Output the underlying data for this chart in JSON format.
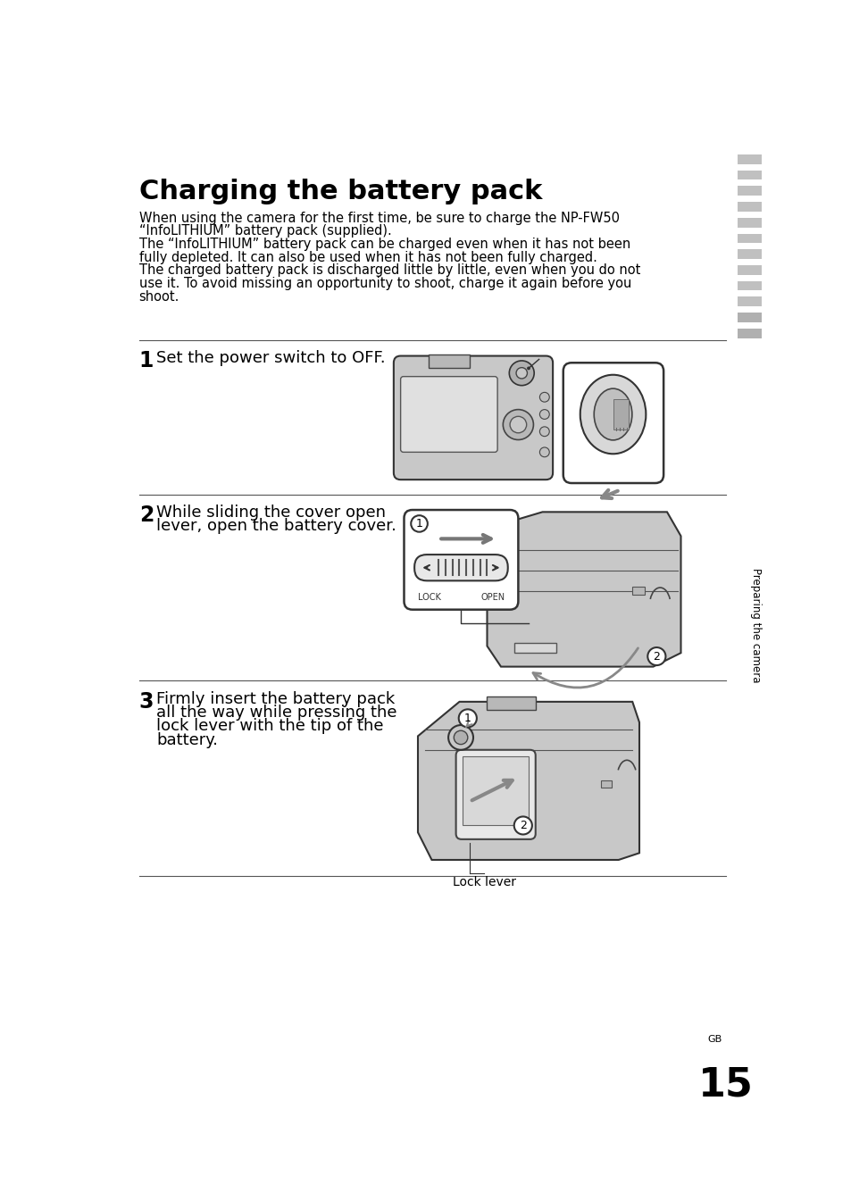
{
  "title": "Charging the battery pack",
  "bg_color": "#ffffff",
  "text_color": "#000000",
  "intro_text_lines": [
    "When using the camera for the first time, be sure to charge the NP-FW50",
    "“InfoLITHIUM” battery pack (supplied).",
    "The “InfoLITHIUM” battery pack can be charged even when it has not been",
    "fully depleted. It can also be used when it has not been fully charged.",
    "The charged battery pack is discharged little by little, even when you do not",
    "use it. To avoid missing an opportunity to shoot, charge it again before you",
    "shoot."
  ],
  "step1_num": "1",
  "step1_text": "Set the power switch to OFF.",
  "step2_num": "2",
  "step2_text1": "While sliding the cover open",
  "step2_text2": "lever, open the battery cover.",
  "step3_num": "3",
  "step3_text1": "Firmly insert the battery pack",
  "step3_text2": "all the way while pressing the",
  "step3_text3": "lock lever with the tip of the",
  "step3_text4": "battery.",
  "lock_lever_label": "Lock lever",
  "page_num": "15",
  "gb_label": "GB",
  "sidebar_text": "Preparing the camera",
  "cam_body_color": "#c8c8c8",
  "cam_edge_color": "#333333",
  "white": "#ffffff",
  "light_gray": "#e0e0e0",
  "med_gray": "#aaaaaa",
  "arrow_gray": "#888888",
  "sep_color": "#555555",
  "title_fontsize": 22,
  "body_fontsize": 10.5,
  "step_num_fontsize": 17,
  "step_text_fontsize": 13,
  "lock_open_fontsize": 7
}
